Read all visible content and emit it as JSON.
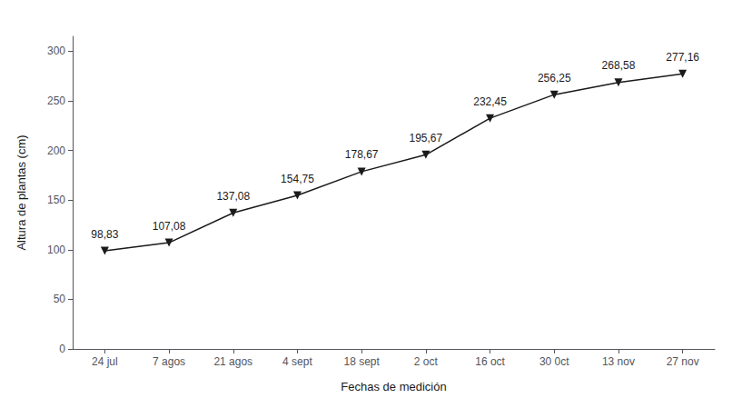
{
  "chart_data": {
    "type": "line",
    "categories": [
      "24 jul",
      "7 agos",
      "21 agos",
      "4 sept",
      "18 sept",
      "2 oct",
      "16 oct",
      "30 0ct",
      "13 nov",
      "27 nov"
    ],
    "values": [
      98.83,
      107.08,
      137.08,
      154.75,
      178.67,
      195.67,
      232.45,
      256.25,
      268.58,
      277.16
    ],
    "value_labels": [
      "98,83",
      "107,08",
      "137,08",
      "154,75",
      "178,67",
      "195,67",
      "232,45",
      "256,25",
      "268,58",
      "277,16"
    ],
    "data_labels": true,
    "xlabel": "Fechas de medición",
    "ylabel": "Altura de plantas (cm)",
    "ylim": [
      0,
      315
    ],
    "yticks": [
      0,
      50,
      100,
      150,
      200,
      250,
      300
    ],
    "color": "#1a1a1a",
    "marker": "triangle_down",
    "grid": false
  }
}
